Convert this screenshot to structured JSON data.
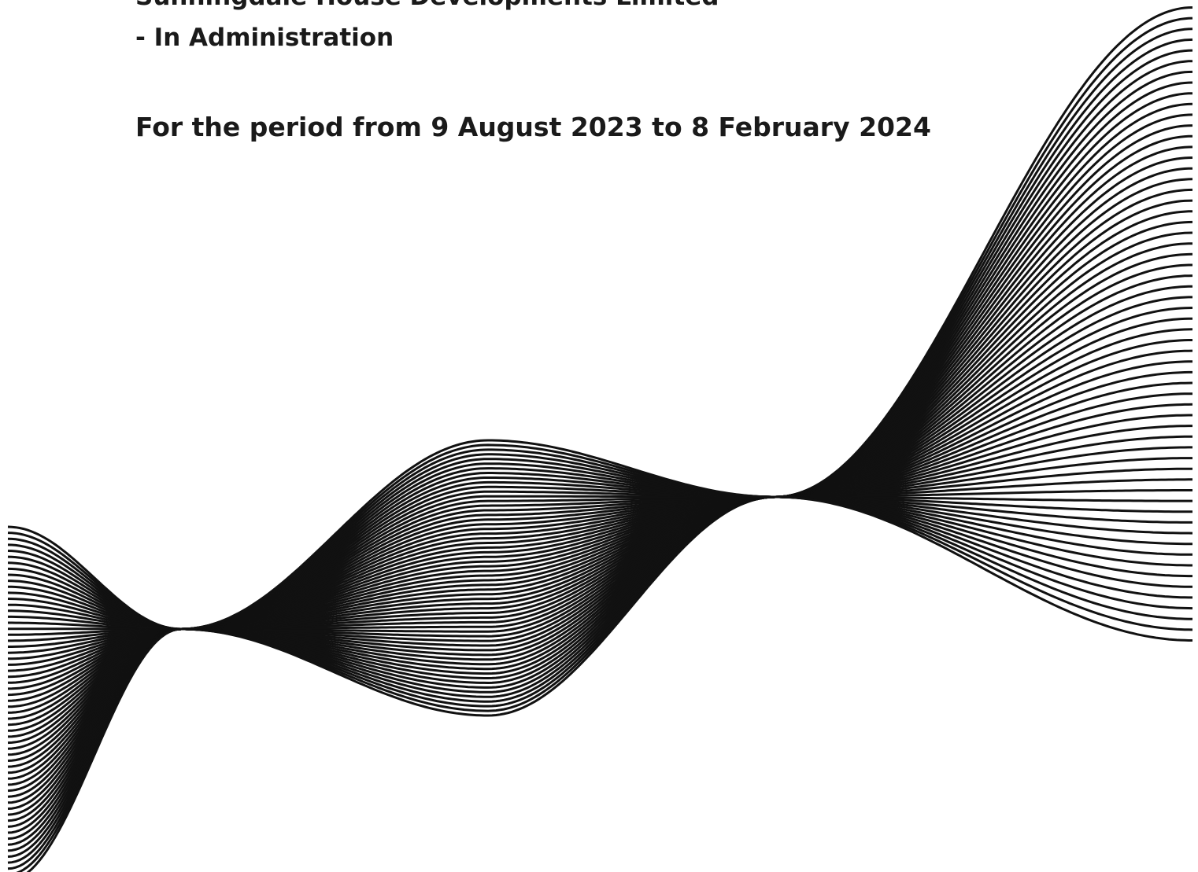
{
  "header": {
    "company": "Sunningdale House Developments Limited",
    "status": "- In Administration"
  },
  "period": "For the period from 9 August 2023 to 8 February 2024"
}
